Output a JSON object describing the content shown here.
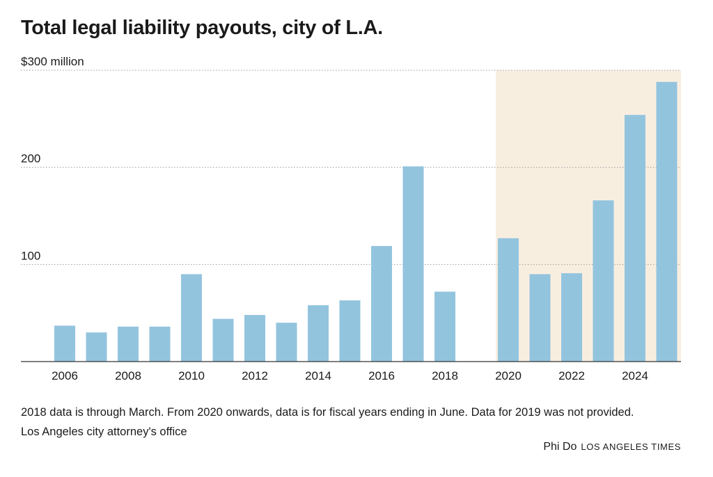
{
  "chart_data": {
    "type": "bar",
    "title": "Total legal liability payouts, city of L.A.",
    "xlabel": "",
    "ylabel": "",
    "y_unit_label": "$300 million",
    "ylim": [
      0,
      300
    ],
    "y_ticks": [
      {
        "value": 100,
        "label": "100"
      },
      {
        "value": 200,
        "label": "200"
      },
      {
        "value": 300,
        "label": "$300 million"
      }
    ],
    "grid": true,
    "x_tick_labels": [
      "2006",
      "2008",
      "2010",
      "2012",
      "2014",
      "2016",
      "2018",
      "2020",
      "2022",
      "2024"
    ],
    "x": [
      2006,
      2007,
      2008,
      2009,
      2010,
      2011,
      2012,
      2013,
      2014,
      2015,
      2016,
      2017,
      2018,
      2019,
      2020,
      2021,
      2022,
      2023,
      2024,
      2025
    ],
    "values": [
      37,
      30,
      36,
      36,
      90,
      44,
      48,
      40,
      58,
      63,
      119,
      201,
      72,
      null,
      127,
      90,
      91,
      166,
      254,
      288
    ],
    "bar_color": "#93c4de",
    "highlight": {
      "from": 2020,
      "to": 2025,
      "color": "#f8eee0"
    },
    "note": "2018 data is through March. From 2020 onwards, data is for fiscal years ending in June. Data for 2019 was not provided.",
    "source": "Los Angeles city attorney's office"
  },
  "credit": {
    "author": "Phi Do",
    "publication": "LOS ANGELES TIMES"
  }
}
